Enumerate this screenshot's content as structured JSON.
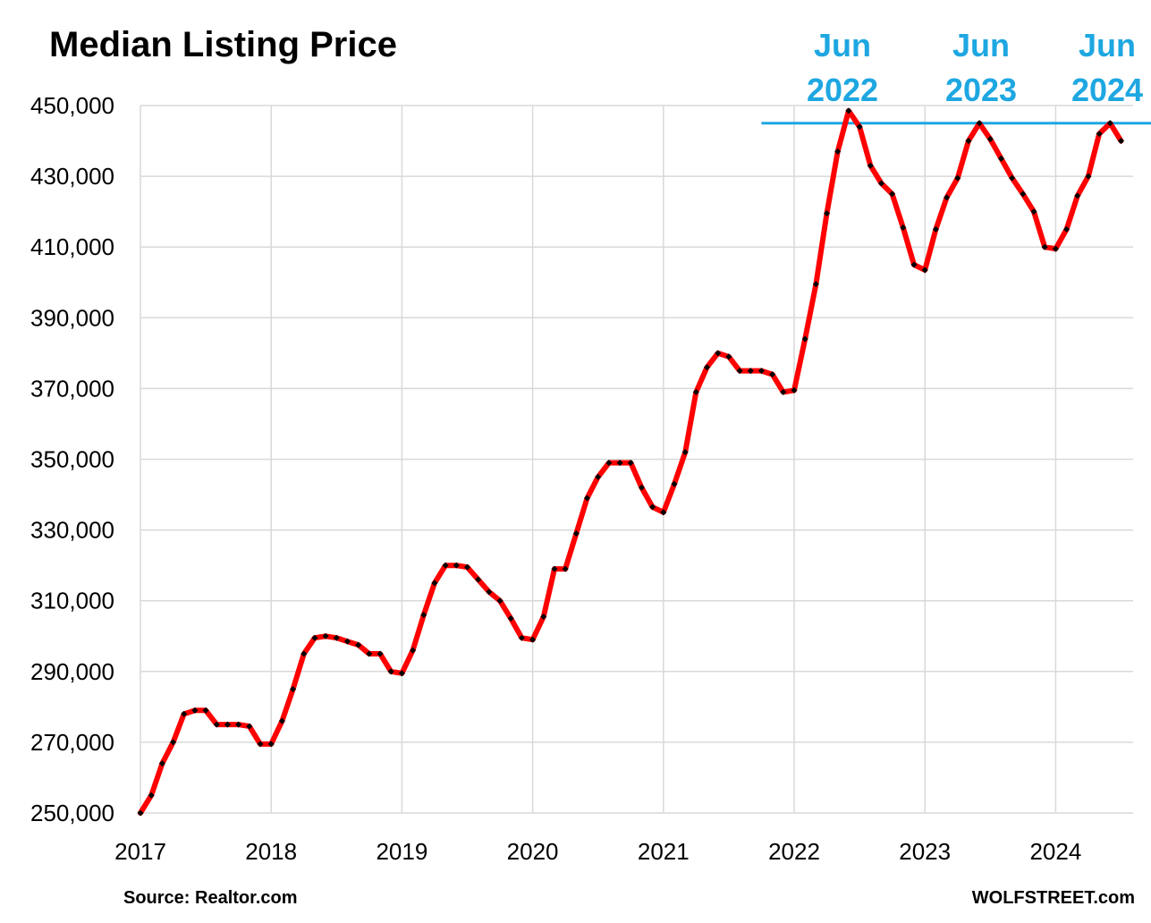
{
  "title": "Median Listing Price",
  "source": "Source: Realtor.com",
  "brand": "WOLFSTREET.com",
  "annotations": [
    {
      "line1": "Jun",
      "line2": "2022"
    },
    {
      "line1": "Jun",
      "line2": "2023"
    },
    {
      "line1": "Jun",
      "line2": "2024"
    }
  ],
  "colors": {
    "series": "#ff0000",
    "markers": "#000000",
    "reference_line": "#1ea7e1",
    "annotation_text": "#1ea7e1",
    "grid": "#d9d9d9"
  },
  "chart_data": {
    "type": "line",
    "title": "Median Listing Price",
    "xlabel": "",
    "ylabel": "",
    "ylim": [
      250000,
      450000
    ],
    "y_ticks": [
      "250,000",
      "270,000",
      "290,000",
      "310,000",
      "330,000",
      "350,000",
      "370,000",
      "390,000",
      "410,000",
      "430,000",
      "450,000"
    ],
    "x_ticks": [
      "2017",
      "2018",
      "2019",
      "2020",
      "2021",
      "2022",
      "2023",
      "2024"
    ],
    "grid": true,
    "reference_line": {
      "value": 445000,
      "start": "2021-10"
    },
    "series": [
      {
        "x": [
          "2017-01",
          "2017-02",
          "2017-03",
          "2017-04",
          "2017-05",
          "2017-06",
          "2017-07",
          "2017-08",
          "2017-09",
          "2017-10",
          "2017-11",
          "2017-12",
          "2018-01",
          "2018-02",
          "2018-03",
          "2018-04",
          "2018-05",
          "2018-06",
          "2018-07",
          "2018-08",
          "2018-09",
          "2018-10",
          "2018-11",
          "2018-12",
          "2019-01",
          "2019-02",
          "2019-03",
          "2019-04",
          "2019-05",
          "2019-06",
          "2019-07",
          "2019-08",
          "2019-09",
          "2019-10",
          "2019-11",
          "2019-12",
          "2020-01",
          "2020-02",
          "2020-03",
          "2020-04",
          "2020-05",
          "2020-06",
          "2020-07",
          "2020-08",
          "2020-09",
          "2020-10",
          "2020-11",
          "2020-12",
          "2021-01",
          "2021-02",
          "2021-03",
          "2021-04",
          "2021-05",
          "2021-06",
          "2021-07",
          "2021-08",
          "2021-09",
          "2021-10",
          "2021-11",
          "2021-12",
          "2022-01",
          "2022-02",
          "2022-03",
          "2022-04",
          "2022-05",
          "2022-06",
          "2022-07",
          "2022-08",
          "2022-09",
          "2022-10",
          "2022-11",
          "2022-12",
          "2023-01",
          "2023-02",
          "2023-03",
          "2023-04",
          "2023-05",
          "2023-06",
          "2023-07",
          "2023-08",
          "2023-09",
          "2023-10",
          "2023-11",
          "2023-12",
          "2024-01",
          "2024-02",
          "2024-03",
          "2024-04",
          "2024-05",
          "2024-06",
          "2024-07"
        ],
        "values": [
          250000,
          255000,
          264000,
          270000,
          278000,
          279000,
          279000,
          275000,
          275000,
          275000,
          274500,
          269500,
          269500,
          276000,
          285000,
          295000,
          299500,
          300000,
          299500,
          298500,
          297500,
          295000,
          295000,
          290000,
          289500,
          296000,
          306000,
          315000,
          320000,
          320000,
          319500,
          316000,
          312500,
          310000,
          305000,
          299500,
          299000,
          305500,
          319000,
          319000,
          329000,
          339000,
          345000,
          349000,
          349000,
          349000,
          342000,
          336500,
          335000,
          343000,
          352000,
          369000,
          376000,
          380000,
          379000,
          375000,
          375000,
          375000,
          374000,
          369000,
          369500,
          384000,
          399500,
          419500,
          437000,
          448500,
          444000,
          433000,
          428000,
          425000,
          415500,
          405000,
          403500,
          415000,
          424000,
          429500,
          440000,
          445000,
          440500,
          435000,
          429500,
          425000,
          420000,
          410000,
          409500,
          415000,
          424500,
          430000,
          442000,
          445000,
          440000
        ]
      }
    ]
  }
}
